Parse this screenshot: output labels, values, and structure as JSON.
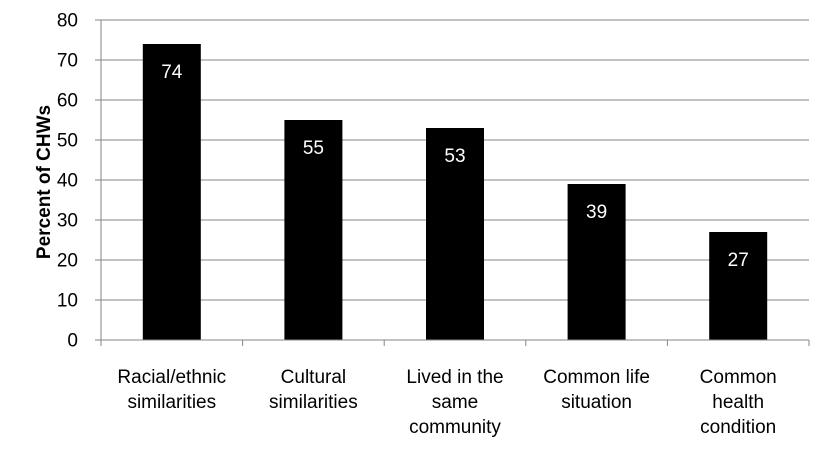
{
  "chart_data": {
    "type": "bar",
    "categories": [
      [
        "Racial/ethnic",
        "similarities"
      ],
      [
        "Cultural",
        "similarities"
      ],
      [
        "Lived in the",
        "same",
        "community"
      ],
      [
        "Common life",
        "situation"
      ],
      [
        "Common",
        "health",
        "condition"
      ]
    ],
    "values": [
      74,
      55,
      53,
      39,
      27
    ],
    "data_labels": [
      "74",
      "55",
      "53",
      "39",
      "27"
    ],
    "ylabel": "Percent of CHWs",
    "xlabel": "",
    "ylim": [
      0,
      80
    ],
    "yticks": [
      0,
      10,
      20,
      30,
      40,
      50,
      60,
      70,
      80
    ],
    "grid": true,
    "bar_color": "#000000",
    "grid_color": "#868686",
    "label_color": "#ffffff"
  }
}
